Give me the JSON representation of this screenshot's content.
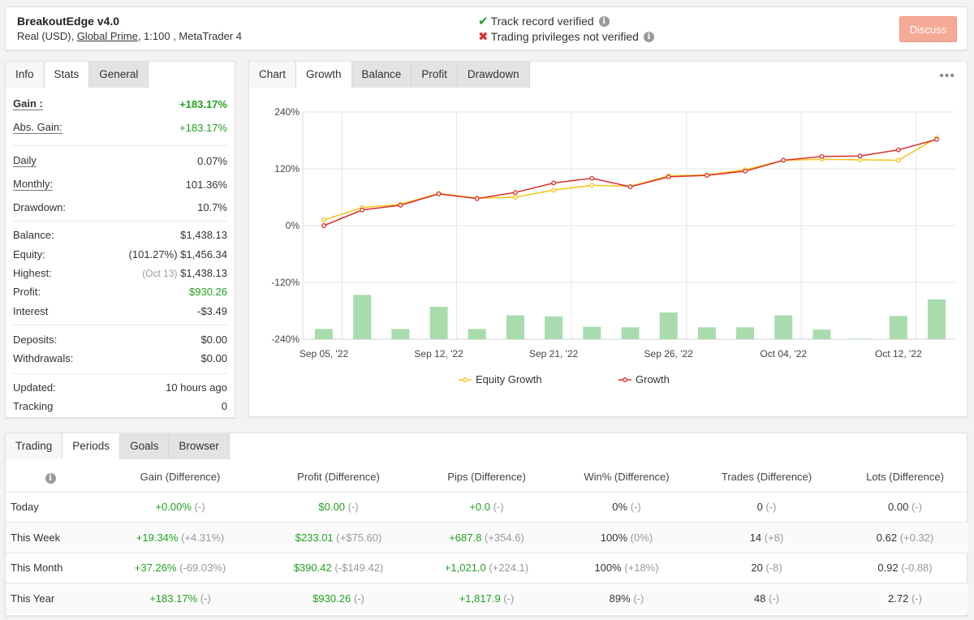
{
  "header": {
    "title": "BreakoutEdge v4.0",
    "account_prefix": "Real (USD), ",
    "broker": "Global Prime",
    "account_suffix": ", 1:100 , MetaTrader 4",
    "track_record": "Track record verified",
    "trading_privileges": "Trading privileges not verified",
    "discuss_label": "Discuss"
  },
  "stats_tabs": [
    "Info",
    "Stats",
    "General"
  ],
  "stats": {
    "gain_label": "Gain :",
    "gain": "+183.17%",
    "abs_gain_label": "Abs. Gain:",
    "abs_gain": "+183.17%",
    "daily_label": "Daily",
    "daily": "0.07%",
    "monthly_label": "Monthly:",
    "monthly": "101.36%",
    "drawdown_label": "Drawdown:",
    "drawdown": "10.7%",
    "balance_label": "Balance:",
    "balance": "$1,438.13",
    "equity_label": "Equity:",
    "equity_pct": "(101.27%)",
    "equity": "$1,456.34",
    "highest_label": "Highest:",
    "highest_date": "(Oct 13)",
    "highest": "$1,438.13",
    "profit_label": "Profit:",
    "profit": "$930.26",
    "interest_label": "Interest",
    "interest": "-$3.49",
    "deposits_label": "Deposits:",
    "deposits": "$0.00",
    "withdrawals_label": "Withdrawals:",
    "withdrawals": "$0.00",
    "updated_label": "Updated:",
    "updated": "10 hours ago",
    "tracking_label": "Tracking",
    "tracking": "0"
  },
  "chart_tabs": [
    "Chart",
    "Growth",
    "Balance",
    "Profit",
    "Drawdown"
  ],
  "chart_data": {
    "type": "line",
    "y_tick_labels": [
      "240%",
      "120%",
      "0%",
      "-120%",
      "-240%"
    ],
    "y_ticks": [
      240,
      120,
      0,
      -120,
      -240
    ],
    "ylim": [
      -240,
      240
    ],
    "x_tick_labels": [
      "Sep 05, '22",
      "Sep 12, '22",
      "Sep 21, '22",
      "Sep 26, '22",
      "Oct 04, '22",
      "Oct 12, '22"
    ],
    "x_tick_index": [
      0,
      3,
      6,
      9,
      12,
      15
    ],
    "points": 17,
    "series": [
      {
        "name": "Equity Growth",
        "color": "#f5c518",
        "values": [
          12,
          38,
          45,
          68,
          58,
          60,
          75,
          85,
          83,
          105,
          107,
          118,
          138,
          140,
          139,
          138,
          185
        ]
      },
      {
        "name": "Growth",
        "color": "#d9302c",
        "values": [
          0,
          33,
          43,
          67,
          57,
          70,
          90,
          100,
          82,
          103,
          106,
          115,
          138,
          146,
          147,
          160,
          182
        ]
      }
    ],
    "bars": {
      "color": "#a8dcad",
      "values": [
        18,
        78,
        18,
        57,
        18,
        42,
        40,
        22,
        21,
        47,
        21,
        21,
        42,
        17,
        1,
        41,
        70
      ]
    },
    "legend_position": "bottom"
  },
  "period_tabs": [
    "Trading",
    "Periods",
    "Goals",
    "Browser"
  ],
  "periods": {
    "headers": [
      "Gain (Difference)",
      "Profit (Difference)",
      "Pips (Difference)",
      "Win% (Difference)",
      "Trades (Difference)",
      "Lots (Difference)"
    ],
    "rows": [
      {
        "label": "Today",
        "cells": [
          [
            "+0.00%",
            "(-)"
          ],
          [
            "$0.00",
            "(-)"
          ],
          [
            "+0.0",
            "(-)"
          ],
          [
            "0%",
            "(-)"
          ],
          [
            "0",
            "(-)"
          ],
          [
            "0.00",
            "(-)"
          ]
        ]
      },
      {
        "label": "This Week",
        "cells": [
          [
            "+19.34%",
            "(+4.31%)"
          ],
          [
            "$233.01",
            "(+$75.60)"
          ],
          [
            "+687.8",
            "(+354.6)"
          ],
          [
            "100%",
            "(0%)"
          ],
          [
            "14",
            "(+8)"
          ],
          [
            "0.62",
            "(+0.32)"
          ]
        ]
      },
      {
        "label": "This Month",
        "cells": [
          [
            "+37.26%",
            "(-69.03%)"
          ],
          [
            "$390.42",
            "(-$149.42)"
          ],
          [
            "+1,021.0",
            "(+224.1)"
          ],
          [
            "100%",
            "(+18%)"
          ],
          [
            "20",
            "(-8)"
          ],
          [
            "0.92",
            "(-0.88)"
          ]
        ]
      },
      {
        "label": "This Year",
        "cells": [
          [
            "+183.17%",
            "(-)"
          ],
          [
            "$930.26",
            "(-)"
          ],
          [
            "+1,817.9",
            "(-)"
          ],
          [
            "89%",
            "(-)"
          ],
          [
            "48",
            "(-)"
          ],
          [
            "2.72",
            "(-)"
          ]
        ]
      }
    ],
    "green_columns": [
      0,
      1,
      2
    ]
  }
}
